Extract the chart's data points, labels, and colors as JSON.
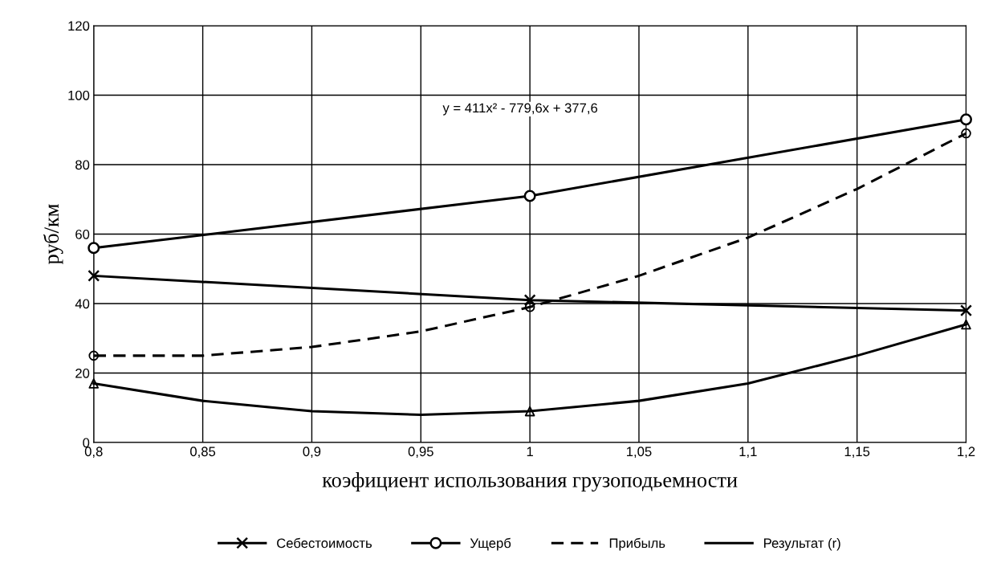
{
  "chart_data": {
    "type": "line",
    "xlabel": "коэфициент использования грузоподьемности",
    "ylabel": "руб/км",
    "xlim": [
      0.8,
      1.2
    ],
    "xticks": [
      {
        "value": 0.8,
        "label": "0,8"
      },
      {
        "value": 0.85,
        "label": "0,85"
      },
      {
        "value": 0.9,
        "label": "0,9"
      },
      {
        "value": 0.95,
        "label": "0,95"
      },
      {
        "value": 1,
        "label": "1"
      },
      {
        "value": 1.05,
        "label": "1,05"
      },
      {
        "value": 1.1,
        "label": "1,1"
      },
      {
        "value": 1.15,
        "label": "1,15"
      },
      {
        "value": 1.2,
        "label": "1,2"
      }
    ],
    "ylim": [
      0,
      120
    ],
    "yticks": [
      0,
      20,
      40,
      60,
      80,
      100,
      120
    ],
    "grid": true,
    "legend": "bottom",
    "annotations": [
      "y = 411x² - 779,6x + 377,6"
    ],
    "series": [
      {
        "name": "Себестоимость",
        "color": "#000000",
        "marker": "cross",
        "line_style": "solid",
        "x": [
          0.8,
          1.0,
          1.2
        ],
        "values": [
          48,
          41,
          38
        ]
      },
      {
        "name": "Ущерб",
        "color": "#000000",
        "marker": "circle",
        "line_style": "solid",
        "x": [
          0.8,
          1.0,
          1.2
        ],
        "values": [
          56,
          71,
          93
        ]
      },
      {
        "type": "scatter",
        "color": "#000000",
        "marker": "circle",
        "x": [
          0.8,
          1.0,
          1.2
        ],
        "values": [
          25,
          39,
          89
        ]
      },
      {
        "name": "Прибыль",
        "color": "#000000",
        "marker": "none",
        "line_style": "dashed",
        "x": [
          0.8,
          0.85,
          0.9,
          0.95,
          1.0,
          1.05,
          1.1,
          1.15,
          1.2
        ],
        "values": [
          25,
          25,
          27.5,
          32,
          39,
          48,
          59,
          73,
          89
        ]
      },
      {
        "type": "scatter",
        "color": "#000000",
        "marker": "triangle",
        "x": [
          0.8,
          1.0,
          1.2
        ],
        "values": [
          17,
          9,
          34
        ]
      },
      {
        "name": "Результат (r)",
        "color": "#000000",
        "marker": "none",
        "line_style": "solid",
        "x": [
          0.8,
          0.85,
          0.9,
          0.95,
          1.0,
          1.05,
          1.1,
          1.15,
          1.2
        ],
        "values": [
          17,
          12,
          9,
          8,
          9,
          12,
          17,
          25,
          34
        ]
      }
    ]
  }
}
